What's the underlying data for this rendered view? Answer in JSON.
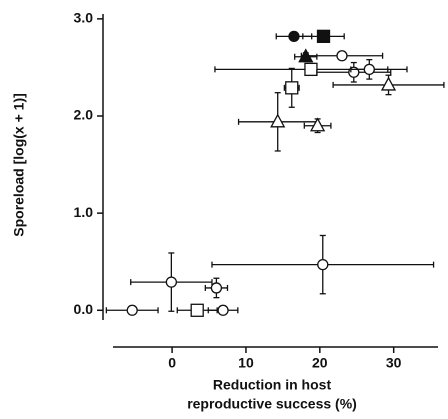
{
  "chart_data": {
    "type": "scatter",
    "ylabel": "Sporeload [log(x + 1)]",
    "xlabel": [
      "Reduction in host",
      "reproductive success (%)"
    ],
    "xlim": [
      -8,
      36
    ],
    "ylim": [
      -0.1,
      3.05
    ],
    "xticks": [
      0,
      10,
      20,
      30
    ],
    "yticks": [
      {
        "value": 0,
        "label": "0.0"
      },
      {
        "value": 1,
        "label": "1.0"
      },
      {
        "value": 2,
        "label": "2.0"
      },
      {
        "value": 3,
        "label": "3.0"
      }
    ],
    "color": "#111111",
    "x": [
      16.5,
      20.5,
      18.1,
      23.0,
      18.8,
      24.6,
      26.7,
      29.3,
      16.2,
      14.3,
      19.7,
      -0.1,
      20.4,
      6.0,
      -5.4,
      3.4,
      6.9
    ],
    "y": [
      2.82,
      2.82,
      2.61,
      2.62,
      2.48,
      2.45,
      2.48,
      2.32,
      2.29,
      1.94,
      1.9,
      0.29,
      0.47,
      0.23,
      0.0,
      0.0,
      0.0
    ],
    "xerr": [
      2.4,
      2.8,
      1.5,
      5.5,
      13.0,
      5.0,
      2.5,
      7.5,
      1.0,
      5.3,
      1.8,
      5.5,
      15.0,
      1.5,
      3.5,
      2.7,
      2.0
    ],
    "yerr": [
      0.02,
      0.02,
      0.04,
      0.02,
      0.05,
      0.1,
      0.1,
      0.1,
      0.2,
      0.3,
      0.07,
      0.3,
      0.3,
      0.1,
      0.02,
      0.02,
      0.02
    ],
    "markers": [
      "filled-circle",
      "filled-square",
      "filled-triangle",
      "circle",
      "square",
      "circle",
      "circle",
      "triangle",
      "square",
      "triangle",
      "triangle",
      "circle",
      "circle",
      "circle",
      "circle",
      "square",
      "circle"
    ]
  }
}
